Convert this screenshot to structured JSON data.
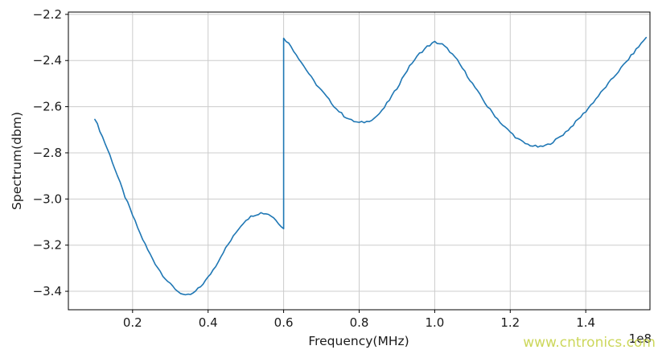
{
  "chart_data": {
    "type": "line",
    "title": "",
    "xlabel": "Frequency(MHz)",
    "ylabel": "Spectrum(dbm)",
    "x_offset_label": "1e8",
    "xlim": [
      0.03,
      1.57
    ],
    "ylim": [
      -3.48,
      -2.19
    ],
    "x_ticks": [
      0.2,
      0.4,
      0.6,
      0.8,
      1.0,
      1.2,
      1.4
    ],
    "y_ticks": [
      -2.2,
      -2.4,
      -2.6,
      -2.8,
      -3.0,
      -3.2,
      -3.4
    ],
    "grid": true,
    "legend": "none",
    "line_color": "#1f77b4",
    "grid_color": "#cccccc",
    "series": [
      {
        "name": "spectrum",
        "points": [
          [
            0.1,
            -2.65
          ],
          [
            0.12,
            -2.73
          ],
          [
            0.14,
            -2.81
          ],
          [
            0.16,
            -2.9
          ],
          [
            0.18,
            -2.99
          ],
          [
            0.2,
            -3.07
          ],
          [
            0.22,
            -3.15
          ],
          [
            0.24,
            -3.22
          ],
          [
            0.26,
            -3.28
          ],
          [
            0.28,
            -3.33
          ],
          [
            0.3,
            -3.37
          ],
          [
            0.32,
            -3.4
          ],
          [
            0.34,
            -3.42
          ],
          [
            0.36,
            -3.41
          ],
          [
            0.38,
            -3.38
          ],
          [
            0.4,
            -3.34
          ],
          [
            0.42,
            -3.29
          ],
          [
            0.44,
            -3.23
          ],
          [
            0.46,
            -3.18
          ],
          [
            0.48,
            -3.13
          ],
          [
            0.5,
            -3.09
          ],
          [
            0.52,
            -3.07
          ],
          [
            0.54,
            -3.06
          ],
          [
            0.56,
            -3.065
          ],
          [
            0.58,
            -3.09
          ],
          [
            0.6,
            -3.13
          ],
          [
            0.6,
            -2.3
          ],
          [
            0.62,
            -2.34
          ],
          [
            0.64,
            -2.39
          ],
          [
            0.66,
            -2.44
          ],
          [
            0.68,
            -2.49
          ],
          [
            0.7,
            -2.53
          ],
          [
            0.72,
            -2.57
          ],
          [
            0.74,
            -2.61
          ],
          [
            0.76,
            -2.64
          ],
          [
            0.78,
            -2.66
          ],
          [
            0.8,
            -2.67
          ],
          [
            0.82,
            -2.665
          ],
          [
            0.84,
            -2.65
          ],
          [
            0.86,
            -2.62
          ],
          [
            0.88,
            -2.57
          ],
          [
            0.9,
            -2.52
          ],
          [
            0.92,
            -2.46
          ],
          [
            0.94,
            -2.41
          ],
          [
            0.96,
            -2.37
          ],
          [
            0.98,
            -2.34
          ],
          [
            1.0,
            -2.32
          ],
          [
            1.02,
            -2.33
          ],
          [
            1.04,
            -2.36
          ],
          [
            1.06,
            -2.4
          ],
          [
            1.08,
            -2.45
          ],
          [
            1.1,
            -2.5
          ],
          [
            1.12,
            -2.55
          ],
          [
            1.14,
            -2.6
          ],
          [
            1.16,
            -2.64
          ],
          [
            1.18,
            -2.68
          ],
          [
            1.2,
            -2.71
          ],
          [
            1.22,
            -2.74
          ],
          [
            1.24,
            -2.76
          ],
          [
            1.26,
            -2.77
          ],
          [
            1.28,
            -2.775
          ],
          [
            1.3,
            -2.765
          ],
          [
            1.32,
            -2.745
          ],
          [
            1.34,
            -2.72
          ],
          [
            1.36,
            -2.69
          ],
          [
            1.38,
            -2.655
          ],
          [
            1.4,
            -2.62
          ],
          [
            1.42,
            -2.58
          ],
          [
            1.44,
            -2.54
          ],
          [
            1.46,
            -2.5
          ],
          [
            1.48,
            -2.46
          ],
          [
            1.5,
            -2.42
          ],
          [
            1.52,
            -2.38
          ],
          [
            1.54,
            -2.34
          ],
          [
            1.56,
            -2.3
          ]
        ]
      }
    ]
  },
  "watermark": {
    "text": "www.cntronics.com",
    "color": "#c8d44e"
  }
}
